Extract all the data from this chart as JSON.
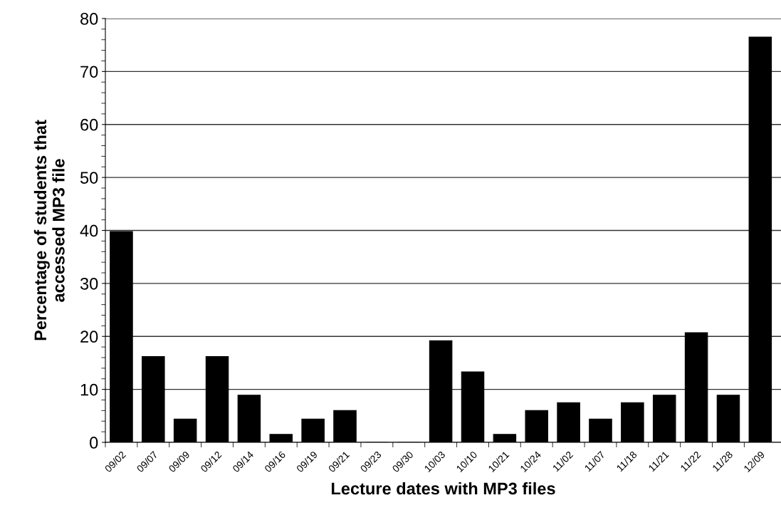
{
  "chart_data": {
    "type": "bar",
    "xlabel": "Lecture dates with MP3 files",
    "ylabel": "Percentage of students that\naccessed MP3 file",
    "categories": [
      "09/02",
      "09/07",
      "09/09",
      "09/12",
      "09/14",
      "09/16",
      "09/19",
      "09/21",
      "09/23",
      "09/30",
      "10/03",
      "10/10",
      "10/21",
      "10/24",
      "11/02",
      "11/07",
      "11/18",
      "11/21",
      "11/22",
      "11/28",
      "12/09"
    ],
    "values": [
      39.8,
      16.2,
      4.4,
      16.2,
      8.9,
      1.5,
      4.4,
      6.0,
      0,
      0,
      19.2,
      13.3,
      1.5,
      6.0,
      7.5,
      4.4,
      7.5,
      8.9,
      20.7,
      8.9,
      76.5
    ],
    "color": "#000000",
    "ylim": [
      0,
      80
    ],
    "yticks": [
      0,
      10,
      20,
      30,
      40,
      50,
      60,
      70,
      80
    ],
    "grid": "y",
    "legend": false
  }
}
